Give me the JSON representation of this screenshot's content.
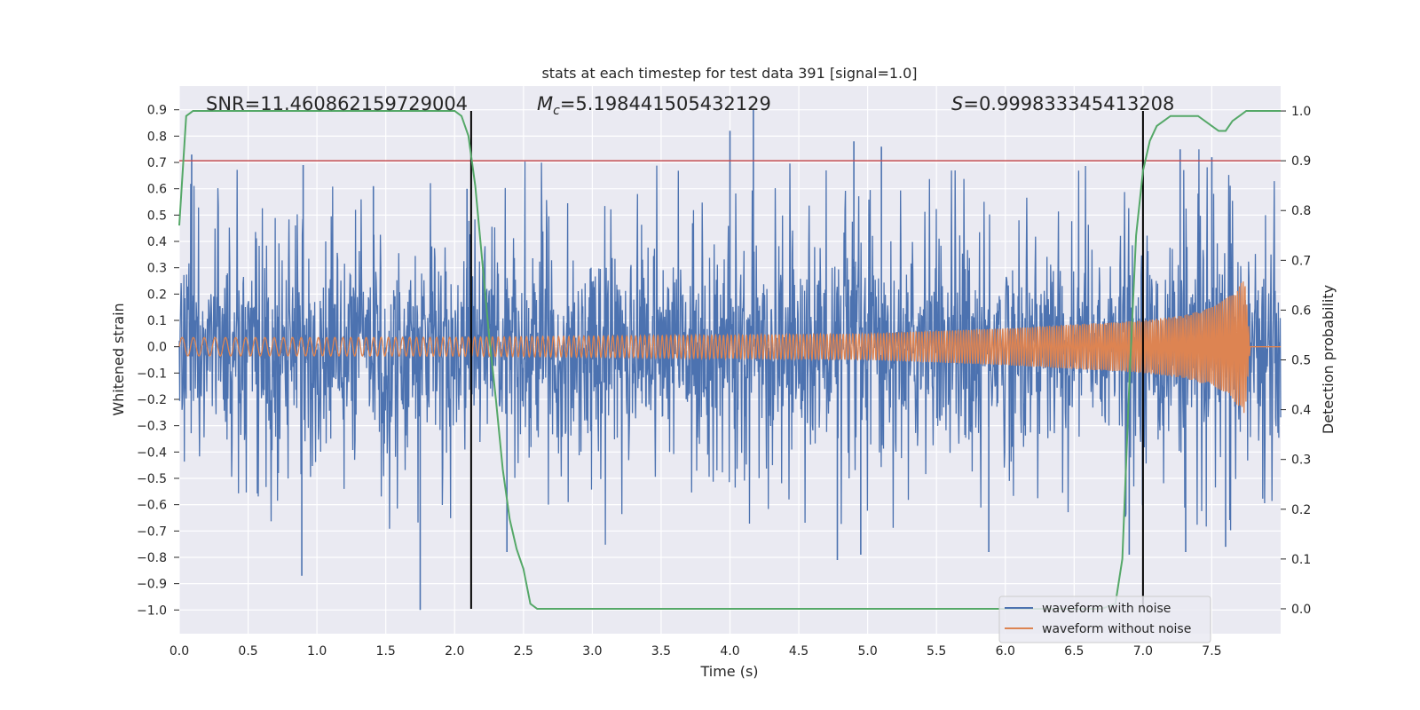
{
  "chart_data": {
    "type": "line",
    "title": "stats at each timestep for test data 391 [signal=1.0]",
    "xlabel": "Time (s)",
    "ylabel_left": "Whitened strain",
    "ylabel_right": "Detection probability",
    "xlim": [
      0.0,
      8.0
    ],
    "ylim_left": [
      -1.09,
      0.99
    ],
    "ylim_right": [
      -0.05,
      1.05
    ],
    "x_ticks": [
      "0.0",
      "0.5",
      "1.0",
      "1.5",
      "2.0",
      "2.5",
      "3.0",
      "3.5",
      "4.0",
      "4.5",
      "5.0",
      "5.5",
      "6.0",
      "6.5",
      "7.0",
      "7.5"
    ],
    "y_left_ticks": [
      "0.9",
      "0.8",
      "0.7",
      "0.6",
      "0.5",
      "0.4",
      "0.3",
      "0.2",
      "0.1",
      "0.0",
      "−0.1",
      "−0.2",
      "−0.3",
      "−0.4",
      "−0.5",
      "−0.6",
      "−0.7",
      "−0.8",
      "−0.9",
      "−1.0"
    ],
    "y_right_ticks": [
      "1.0",
      "0.9",
      "0.8",
      "0.7",
      "0.6",
      "0.5",
      "0.4",
      "0.3",
      "0.2",
      "0.1",
      "0.0"
    ],
    "annotations": {
      "snr": "SNR=11.460862159729004",
      "mc": "=5.198441505432129",
      "mc_symbol": "M",
      "mc_subscript": "c",
      "s": "=0.999833345413208",
      "s_symbol": "S"
    },
    "threshold": {
      "value_right": 0.9,
      "color": "#c44e52"
    },
    "vertical_markers": [
      2.12,
      7.0
    ],
    "series": [
      {
        "name": "waveform with noise",
        "color": "#4c72b0",
        "axis": "left",
        "envelope_peaks_top": [
          [
            0.09,
            0.73
          ],
          [
            0.9,
            0.69
          ],
          [
            1.41,
            0.61
          ],
          [
            2.09,
            0.6
          ],
          [
            4.0,
            0.82
          ],
          [
            4.17,
            0.9
          ],
          [
            4.9,
            0.78
          ],
          [
            5.1,
            0.76
          ],
          [
            7.27,
            0.75
          ],
          [
            7.5,
            0.72
          ]
        ],
        "envelope_peaks_bottom": [
          [
            0.89,
            -0.87
          ],
          [
            1.75,
            -1.0
          ],
          [
            2.38,
            -0.78
          ],
          [
            4.78,
            -0.81
          ],
          [
            4.95,
            -0.79
          ],
          [
            5.88,
            -0.78
          ],
          [
            6.9,
            -0.79
          ],
          [
            7.31,
            -0.78
          ],
          [
            7.6,
            -0.76
          ]
        ]
      },
      {
        "name": "waveform without noise",
        "color": "#dd8452",
        "axis": "left",
        "amplitude_points": [
          [
            0.0,
            0.035
          ],
          [
            1.0,
            0.035
          ],
          [
            2.0,
            0.036
          ],
          [
            3.0,
            0.04
          ],
          [
            4.0,
            0.045
          ],
          [
            5.0,
            0.05
          ],
          [
            6.0,
            0.07
          ],
          [
            6.5,
            0.085
          ],
          [
            7.0,
            0.1
          ],
          [
            7.3,
            0.12
          ],
          [
            7.5,
            0.15
          ],
          [
            7.65,
            0.2
          ],
          [
            7.74,
            0.26
          ],
          [
            7.78,
            0.0
          ],
          [
            8.0,
            0.0
          ]
        ]
      },
      {
        "name": "detection probability",
        "color": "#55a868",
        "axis": "right",
        "x": [
          0.0,
          0.05,
          0.1,
          0.2,
          0.5,
          1.0,
          1.5,
          1.9,
          2.0,
          2.05,
          2.1,
          2.15,
          2.2,
          2.25,
          2.3,
          2.35,
          2.4,
          2.45,
          2.5,
          2.55,
          2.6,
          3.0,
          4.0,
          5.0,
          6.0,
          6.5,
          6.7,
          6.8,
          6.85,
          6.9,
          6.95,
          7.0,
          7.05,
          7.1,
          7.2,
          7.3,
          7.4,
          7.5,
          7.55,
          7.6,
          7.65,
          7.7,
          7.75,
          7.8,
          8.0
        ],
        "y": [
          0.77,
          0.99,
          1.0,
          1.0,
          1.0,
          1.0,
          1.0,
          1.0,
          1.0,
          0.99,
          0.95,
          0.85,
          0.7,
          0.55,
          0.42,
          0.28,
          0.18,
          0.12,
          0.08,
          0.01,
          0.0,
          0.0,
          0.0,
          0.0,
          0.0,
          0.0,
          0.0,
          0.01,
          0.1,
          0.45,
          0.75,
          0.88,
          0.94,
          0.97,
          0.99,
          0.99,
          0.99,
          0.97,
          0.96,
          0.96,
          0.98,
          0.99,
          1.0,
          1.0,
          1.0
        ]
      }
    ],
    "legend": {
      "placement": "lower-right",
      "entries": [
        {
          "label": "waveform with noise",
          "color": "#4c72b0"
        },
        {
          "label": "waveform without noise",
          "color": "#dd8452"
        }
      ]
    }
  }
}
